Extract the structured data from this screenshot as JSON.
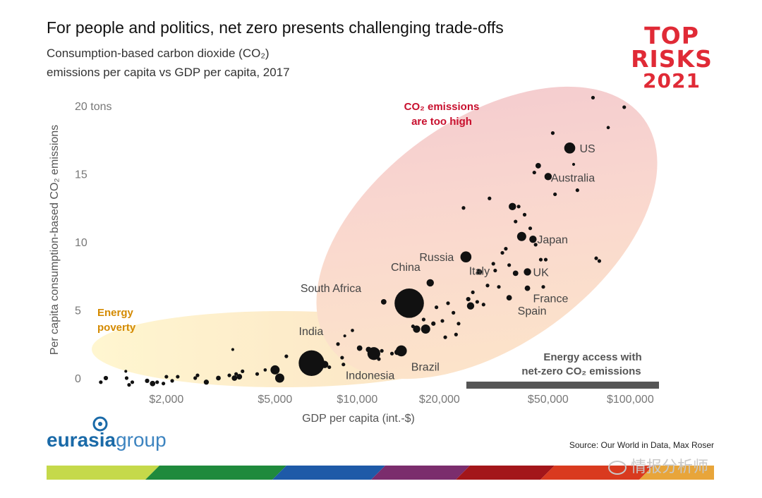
{
  "header": {
    "title": "For people and politics, net zero presents challenging trade-offs",
    "subtitle_line1": "Consumption-based carbon dioxide (CO₂)",
    "subtitle_line2": "emissions per capita vs GDP per capita, 2017"
  },
  "badge": {
    "line1": "TOP",
    "line2": "RISKS",
    "line3": "2021",
    "color": "#e02a36"
  },
  "footer": {
    "logo_main": "eurasia",
    "logo_accent": "group",
    "source": "Source: Our World in Data, Max Roser",
    "watermark": "情报分析师"
  },
  "chart_data": {
    "type": "scatter",
    "title": "Consumption-based carbon dioxide (CO₂) emissions per capita vs GDP per capita, 2017",
    "xlabel": "GDP per capita (int.-$)",
    "ylabel": "Per capita consumption-based CO₂ emissions",
    "x_scale": "log",
    "xlim": [
      1100,
      130000
    ],
    "ylim": [
      0,
      20
    ],
    "x_ticks": [
      {
        "value": 2000,
        "label": "$2,000"
      },
      {
        "value": 5000,
        "label": "$5,000"
      },
      {
        "value": 10000,
        "label": "$10,000"
      },
      {
        "value": 20000,
        "label": "$20,000"
      },
      {
        "value": 50000,
        "label": "$50,000"
      },
      {
        "value": 100000,
        "label": "$100,000"
      }
    ],
    "y_ticks": [
      {
        "value": 0,
        "label": "0"
      },
      {
        "value": 5,
        "label": "5"
      },
      {
        "value": 10,
        "label": "10"
      },
      {
        "value": 15,
        "label": "15"
      },
      {
        "value": 20,
        "label": "20 tons"
      }
    ],
    "annotations": {
      "energy_poverty_line1": "Energy",
      "energy_poverty_line2": "poverty",
      "too_high_line1": "CO₂ emissions",
      "too_high_line2": "are too high",
      "access_line1": "Energy access with",
      "access_line2": "net-zero CO₂ emissions"
    },
    "colors": {
      "points": "#111111",
      "energy_poverty": "#d48a00",
      "too_high": "#c8102e",
      "access_bar": "#555555"
    },
    "labeled_points": [
      {
        "name": "US",
        "x": 60000,
        "y": 16.9,
        "size": 3,
        "dx": 14,
        "dy": 6
      },
      {
        "name": "Australia",
        "x": 50000,
        "y": 14.8,
        "size": 2,
        "dx": 4,
        "dy": 7
      },
      {
        "name": "Japan",
        "x": 44000,
        "y": 10.2,
        "size": 2,
        "dx": 6,
        "dy": 6
      },
      {
        "name": "Russia",
        "x": 25000,
        "y": 8.9,
        "size": 3,
        "dx": -66,
        "dy": 6
      },
      {
        "name": "Italy",
        "x": 38000,
        "y": 7.7,
        "size": 1.5,
        "dx": -66,
        "dy": 2
      },
      {
        "name": "UK",
        "x": 42000,
        "y": 7.8,
        "size": 2,
        "dx": 8,
        "dy": 6
      },
      {
        "name": "France",
        "x": 42000,
        "y": 6.6,
        "size": 1.5,
        "dx": 8,
        "dy": 20
      },
      {
        "name": "Spain",
        "x": 36000,
        "y": 5.9,
        "size": 1.5,
        "dx": 12,
        "dy": 24
      },
      {
        "name": "China",
        "x": 15500,
        "y": 5.5,
        "size": 8,
        "dx": -26,
        "dy": -46
      },
      {
        "name": "South Africa",
        "x": 12500,
        "y": 5.6,
        "size": 1.5,
        "dx": -118,
        "dy": -14
      },
      {
        "name": "India",
        "x": 6800,
        "y": 1.1,
        "size": 7,
        "dx": -18,
        "dy": -40
      },
      {
        "name": "Indonesia",
        "x": 11500,
        "y": 1.8,
        "size": 3.5,
        "dx": -40,
        "dy": 36
      },
      {
        "name": "Brazil",
        "x": 14500,
        "y": 2.0,
        "size": 3,
        "dx": 14,
        "dy": 28
      }
    ],
    "points": [
      {
        "x": 1150,
        "y": -0.3,
        "size": 1
      },
      {
        "x": 1200,
        "y": 0.0,
        "size": 1.2
      },
      {
        "x": 1420,
        "y": 0.5,
        "size": 0.8
      },
      {
        "x": 1430,
        "y": 0.0,
        "size": 1
      },
      {
        "x": 1460,
        "y": -0.5,
        "size": 1
      },
      {
        "x": 1500,
        "y": -0.3,
        "size": 1
      },
      {
        "x": 1700,
        "y": -0.2,
        "size": 1.2
      },
      {
        "x": 1780,
        "y": -0.4,
        "size": 1.5
      },
      {
        "x": 1850,
        "y": -0.3,
        "size": 1
      },
      {
        "x": 1950,
        "y": -0.4,
        "size": 1
      },
      {
        "x": 2000,
        "y": 0.1,
        "size": 1
      },
      {
        "x": 2100,
        "y": -0.2,
        "size": 1
      },
      {
        "x": 2200,
        "y": 0.1,
        "size": 1
      },
      {
        "x": 2550,
        "y": 0.0,
        "size": 1
      },
      {
        "x": 2800,
        "y": -0.3,
        "size": 1.4
      },
      {
        "x": 2600,
        "y": 0.2,
        "size": 1
      },
      {
        "x": 3100,
        "y": 0.0,
        "size": 1.3
      },
      {
        "x": 3400,
        "y": 0.2,
        "size": 1
      },
      {
        "x": 3550,
        "y": 0.0,
        "size": 1.5
      },
      {
        "x": 3600,
        "y": 0.3,
        "size": 1
      },
      {
        "x": 3700,
        "y": 0.1,
        "size": 1.5
      },
      {
        "x": 3800,
        "y": 0.5,
        "size": 1
      },
      {
        "x": 3500,
        "y": 2.1,
        "size": 0.8
      },
      {
        "x": 4300,
        "y": 0.3,
        "size": 1
      },
      {
        "x": 4600,
        "y": 0.6,
        "size": 0.9
      },
      {
        "x": 5000,
        "y": 0.6,
        "size": 2.5
      },
      {
        "x": 5200,
        "y": 0.0,
        "size": 2.5
      },
      {
        "x": 5500,
        "y": 1.6,
        "size": 1
      },
      {
        "x": 7600,
        "y": 1.0,
        "size": 2
      },
      {
        "x": 7900,
        "y": 0.8,
        "size": 1
      },
      {
        "x": 8500,
        "y": 2.5,
        "size": 1
      },
      {
        "x": 8800,
        "y": 1.5,
        "size": 1
      },
      {
        "x": 8900,
        "y": 1.0,
        "size": 1
      },
      {
        "x": 9000,
        "y": 3.1,
        "size": 0.8
      },
      {
        "x": 9600,
        "y": 3.5,
        "size": 0.9
      },
      {
        "x": 10200,
        "y": 2.2,
        "size": 1.5
      },
      {
        "x": 11000,
        "y": 2.1,
        "size": 1.5
      },
      {
        "x": 12000,
        "y": 1.4,
        "size": 1
      },
      {
        "x": 12300,
        "y": 2.0,
        "size": 1
      },
      {
        "x": 13400,
        "y": 1.8,
        "size": 1
      },
      {
        "x": 14000,
        "y": 1.9,
        "size": 1.5
      },
      {
        "x": 15000,
        "y": 4.7,
        "size": 1
      },
      {
        "x": 16000,
        "y": 3.8,
        "size": 1
      },
      {
        "x": 16500,
        "y": 3.6,
        "size": 2
      },
      {
        "x": 17500,
        "y": 4.3,
        "size": 1
      },
      {
        "x": 17800,
        "y": 3.6,
        "size": 2.5
      },
      {
        "x": 18500,
        "y": 7.0,
        "size": 2
      },
      {
        "x": 19000,
        "y": 4.0,
        "size": 1.2
      },
      {
        "x": 19500,
        "y": 5.2,
        "size": 1
      },
      {
        "x": 20500,
        "y": 4.2,
        "size": 1
      },
      {
        "x": 21000,
        "y": 3.0,
        "size": 1
      },
      {
        "x": 21500,
        "y": 5.5,
        "size": 1
      },
      {
        "x": 22500,
        "y": 4.8,
        "size": 1
      },
      {
        "x": 23000,
        "y": 3.2,
        "size": 1
      },
      {
        "x": 23500,
        "y": 4.0,
        "size": 1
      },
      {
        "x": 24500,
        "y": 12.5,
        "size": 1
      },
      {
        "x": 25500,
        "y": 5.8,
        "size": 1.2
      },
      {
        "x": 26000,
        "y": 5.3,
        "size": 2
      },
      {
        "x": 26500,
        "y": 6.3,
        "size": 1
      },
      {
        "x": 27500,
        "y": 5.6,
        "size": 1
      },
      {
        "x": 28000,
        "y": 7.8,
        "size": 1.5
      },
      {
        "x": 29000,
        "y": 5.4,
        "size": 1
      },
      {
        "x": 30000,
        "y": 6.8,
        "size": 1
      },
      {
        "x": 30500,
        "y": 13.2,
        "size": 1
      },
      {
        "x": 31500,
        "y": 8.4,
        "size": 1
      },
      {
        "x": 32000,
        "y": 7.9,
        "size": 1
      },
      {
        "x": 33000,
        "y": 6.7,
        "size": 1
      },
      {
        "x": 34000,
        "y": 9.2,
        "size": 1
      },
      {
        "x": 35000,
        "y": 9.5,
        "size": 1
      },
      {
        "x": 36000,
        "y": 8.3,
        "size": 1
      },
      {
        "x": 37000,
        "y": 12.6,
        "size": 2
      },
      {
        "x": 38000,
        "y": 11.5,
        "size": 1
      },
      {
        "x": 39000,
        "y": 12.6,
        "size": 1
      },
      {
        "x": 40000,
        "y": 10.4,
        "size": 2.5
      },
      {
        "x": 41000,
        "y": 12.0,
        "size": 1
      },
      {
        "x": 43000,
        "y": 11.0,
        "size": 1
      },
      {
        "x": 45000,
        "y": 9.8,
        "size": 1
      },
      {
        "x": 44500,
        "y": 15.1,
        "size": 1
      },
      {
        "x": 46000,
        "y": 15.6,
        "size": 1.5
      },
      {
        "x": 47000,
        "y": 8.7,
        "size": 1
      },
      {
        "x": 49000,
        "y": 8.7,
        "size": 1
      },
      {
        "x": 48000,
        "y": 6.7,
        "size": 1
      },
      {
        "x": 52000,
        "y": 18.0,
        "size": 1
      },
      {
        "x": 53000,
        "y": 13.5,
        "size": 1
      },
      {
        "x": 62000,
        "y": 15.7,
        "size": 0.8
      },
      {
        "x": 64000,
        "y": 13.8,
        "size": 1
      },
      {
        "x": 73000,
        "y": 20.6,
        "size": 1
      },
      {
        "x": 75000,
        "y": 8.8,
        "size": 1
      },
      {
        "x": 77000,
        "y": 8.6,
        "size": 1
      },
      {
        "x": 83000,
        "y": 18.4,
        "size": 0.9
      },
      {
        "x": 95000,
        "y": 19.9,
        "size": 1
      }
    ]
  }
}
